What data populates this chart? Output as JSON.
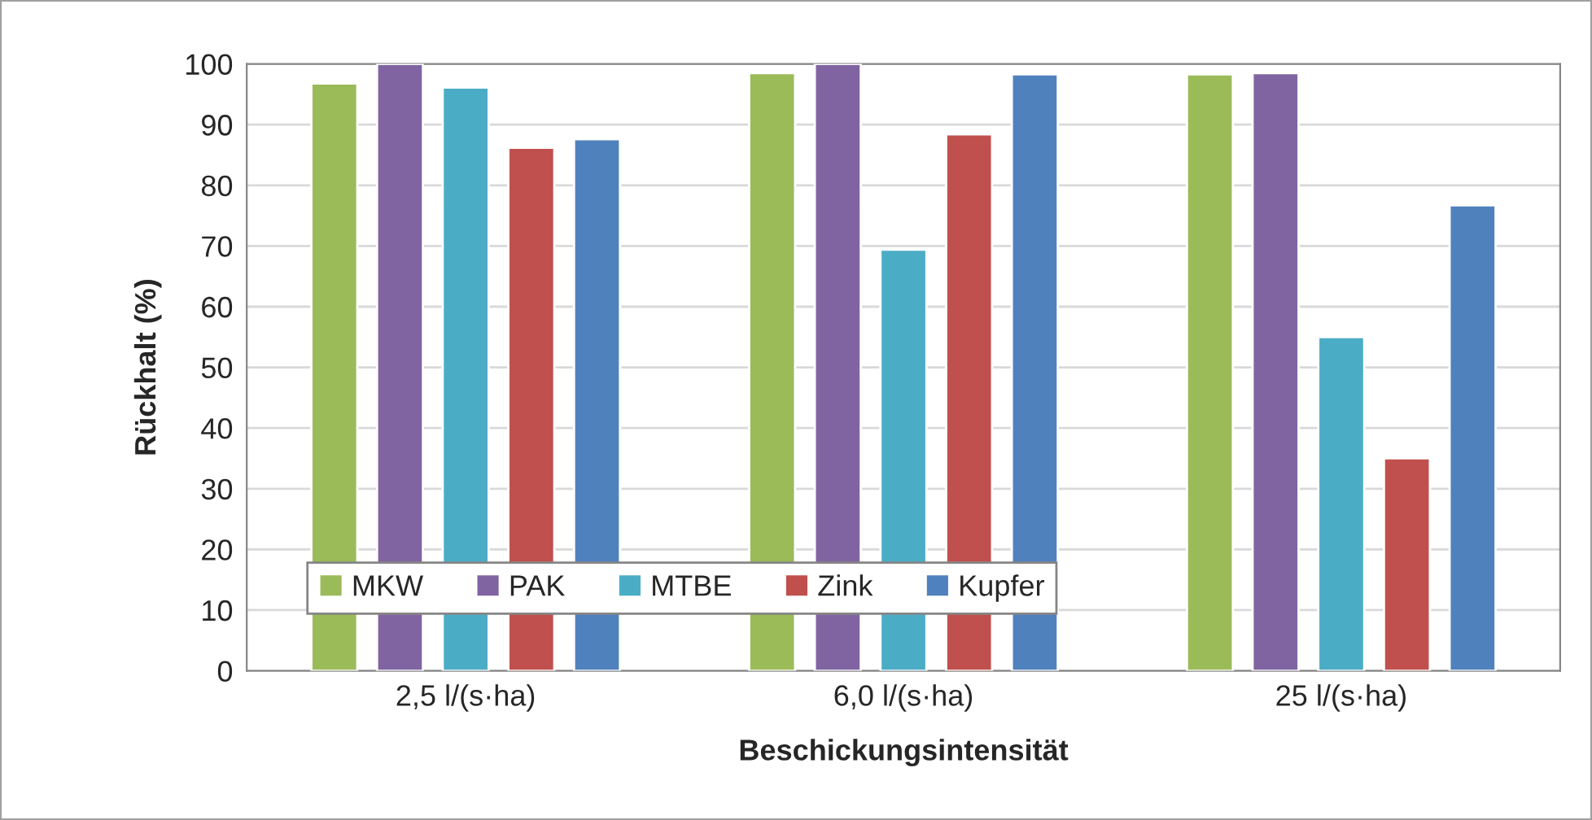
{
  "chart_data": {
    "type": "bar",
    "xlabel": "Beschickungsintensität",
    "ylabel": "Rückhalt (%)",
    "categories": [
      "2,5 l/(s·ha)",
      "6,0 l/(s·ha)",
      "25 l/(s·ha)"
    ],
    "series": [
      {
        "name": "MKW",
        "color": "#9bbb59",
        "values": [
          96.8,
          98.5,
          98.3
        ]
      },
      {
        "name": "PAK",
        "color": "#8064a2",
        "values": [
          100,
          100,
          98.5
        ]
      },
      {
        "name": "MTBE",
        "color": "#4bacc6",
        "values": [
          96.1,
          69.4,
          55
        ]
      },
      {
        "name": "Zink",
        "color": "#c0504d",
        "values": [
          86.2,
          88.4,
          35
        ]
      },
      {
        "name": "Kupfer",
        "color": "#4f81bd",
        "values": [
          87.6,
          98.3,
          76.7
        ]
      }
    ],
    "ylim": [
      0,
      100
    ],
    "yticks": [
      0,
      10,
      20,
      30,
      40,
      50,
      60,
      70,
      80,
      90,
      100
    ],
    "grid": "y",
    "legend": "bottom left"
  }
}
